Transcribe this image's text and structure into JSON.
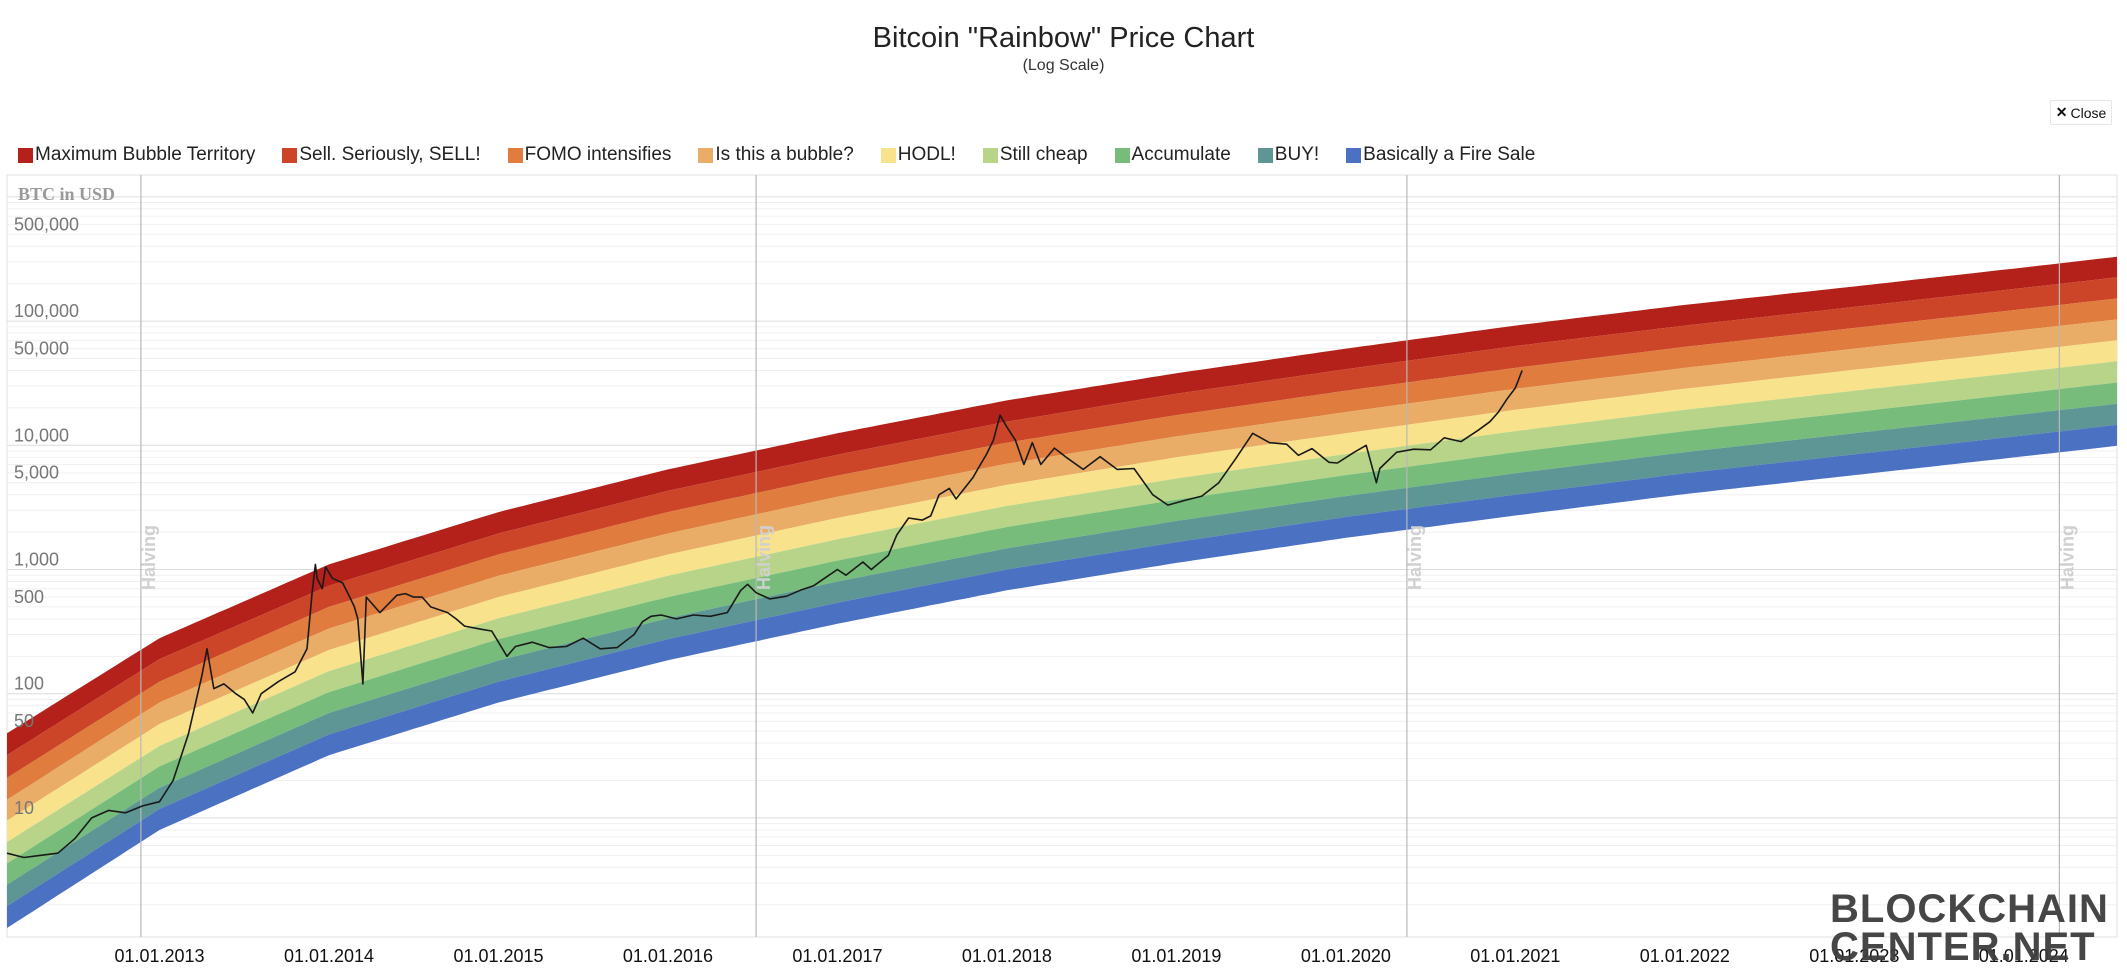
{
  "header": {
    "title": "Bitcoin \"Rainbow\" Price Chart",
    "subtitle": "(Log Scale)",
    "close_label": "Close"
  },
  "watermark": {
    "line1": "BLOCKCHAIN",
    "line2": "CENTER.NET"
  },
  "chart_data": {
    "type": "area",
    "title": "Bitcoin \"Rainbow\" Price Chart",
    "subtitle": "(Log Scale)",
    "ylabel": "BTC in USD",
    "yscale": "log",
    "ylim": [
      1.1,
      1500000
    ],
    "yticks": [
      {
        "value": 500000,
        "label": "500,000"
      },
      {
        "value": 100000,
        "label": "100,000"
      },
      {
        "value": 50000,
        "label": "50,000"
      },
      {
        "value": 10000,
        "label": "10,000"
      },
      {
        "value": 5000,
        "label": "5,000"
      },
      {
        "value": 1000,
        "label": "1,000"
      },
      {
        "value": 500,
        "label": "500"
      },
      {
        "value": 100,
        "label": "100"
      },
      {
        "value": 50,
        "label": "50"
      },
      {
        "value": 10,
        "label": "10"
      }
    ],
    "xlim": [
      2012.1,
      2024.55
    ],
    "xticks": [
      {
        "value": 2013,
        "label": "01.01.2013"
      },
      {
        "value": 2014,
        "label": "01.01.2014"
      },
      {
        "value": 2015,
        "label": "01.01.2015"
      },
      {
        "value": 2016,
        "label": "01.01.2016"
      },
      {
        "value": 2017,
        "label": "01.01.2017"
      },
      {
        "value": 2018,
        "label": "01.01.2018"
      },
      {
        "value": 2019,
        "label": "01.01.2019"
      },
      {
        "value": 2020,
        "label": "01.01.2020"
      },
      {
        "value": 2021,
        "label": "01.01.2021"
      },
      {
        "value": 2022,
        "label": "01.01.2022"
      },
      {
        "value": 2023,
        "label": "01.01.2023"
      },
      {
        "value": 2024,
        "label": "01.01.2024"
      }
    ],
    "halvings": [
      {
        "x": 2012.89,
        "label": "Halving"
      },
      {
        "x": 2016.52,
        "label": "Halving"
      },
      {
        "x": 2020.36,
        "label": "Halving"
      },
      {
        "x": 2024.21,
        "label": "Halving"
      }
    ],
    "bands": [
      {
        "name": "Maximum Bubble Territory",
        "color": "#b4201a",
        "upper": [
          [
            2012.1,
            48
          ],
          [
            2013,
            280
          ],
          [
            2014,
            1100
          ],
          [
            2015,
            2900
          ],
          [
            2016,
            6400
          ],
          [
            2017,
            12500
          ],
          [
            2018,
            23000
          ],
          [
            2019,
            38000
          ],
          [
            2020,
            60000
          ],
          [
            2021,
            92000
          ],
          [
            2022,
            135000
          ],
          [
            2023,
            190000
          ],
          [
            2024,
            270000
          ],
          [
            2024.55,
            330000
          ]
        ]
      },
      {
        "name": "Sell. Seriously, SELL!",
        "color": "#cc4529",
        "upper": [
          [
            2012.1,
            32
          ],
          [
            2013,
            190
          ],
          [
            2014,
            740
          ],
          [
            2015,
            1950
          ],
          [
            2016,
            4300
          ],
          [
            2017,
            8400
          ],
          [
            2018,
            15500
          ],
          [
            2019,
            26000
          ],
          [
            2020,
            41000
          ],
          [
            2021,
            63000
          ],
          [
            2022,
            92000
          ],
          [
            2023,
            130000
          ],
          [
            2024,
            185000
          ],
          [
            2024.55,
            225000
          ]
        ]
      },
      {
        "name": "FOMO intensifies",
        "color": "#e07c3e",
        "upper": [
          [
            2012.1,
            21
          ],
          [
            2013,
            125
          ],
          [
            2014,
            500
          ],
          [
            2015,
            1320
          ],
          [
            2016,
            2900
          ],
          [
            2017,
            5700
          ],
          [
            2018,
            10500
          ],
          [
            2019,
            17500
          ],
          [
            2020,
            27500
          ],
          [
            2021,
            42000
          ],
          [
            2022,
            62000
          ],
          [
            2023,
            88000
          ],
          [
            2024,
            125000
          ],
          [
            2024.55,
            152000
          ]
        ]
      },
      {
        "name": "Is this a bubble?",
        "color": "#eaad68",
        "upper": [
          [
            2012.1,
            14
          ],
          [
            2013,
            85
          ],
          [
            2014,
            335
          ],
          [
            2015,
            890
          ],
          [
            2016,
            1950
          ],
          [
            2017,
            3850
          ],
          [
            2018,
            7100
          ],
          [
            2019,
            11800
          ],
          [
            2020,
            18500
          ],
          [
            2021,
            28500
          ],
          [
            2022,
            42000
          ],
          [
            2023,
            60000
          ],
          [
            2024,
            85000
          ],
          [
            2024.55,
            103000
          ]
        ]
      },
      {
        "name": "HODL!",
        "color": "#f8e38c",
        "upper": [
          [
            2012.1,
            9.5
          ],
          [
            2013,
            57
          ],
          [
            2014,
            225
          ],
          [
            2015,
            600
          ],
          [
            2016,
            1320
          ],
          [
            2017,
            2600
          ],
          [
            2018,
            4800
          ],
          [
            2019,
            8000
          ],
          [
            2020,
            12500
          ],
          [
            2021,
            19300
          ],
          [
            2022,
            28500
          ],
          [
            2023,
            40500
          ],
          [
            2024,
            57500
          ],
          [
            2024.55,
            70000
          ]
        ]
      },
      {
        "name": "Still cheap",
        "color": "#b7d488",
        "upper": [
          [
            2012.1,
            6.4
          ],
          [
            2013,
            38
          ],
          [
            2014,
            152
          ],
          [
            2015,
            405
          ],
          [
            2016,
            890
          ],
          [
            2017,
            1750
          ],
          [
            2018,
            3250
          ],
          [
            2019,
            5400
          ],
          [
            2020,
            8500
          ],
          [
            2021,
            13000
          ],
          [
            2022,
            19300
          ],
          [
            2023,
            27500
          ],
          [
            2024,
            39000
          ],
          [
            2024.55,
            47500
          ]
        ]
      },
      {
        "name": "Accumulate",
        "color": "#77bc7b",
        "upper": [
          [
            2012.1,
            4.3
          ],
          [
            2013,
            26
          ],
          [
            2014,
            103
          ],
          [
            2015,
            275
          ],
          [
            2016,
            600
          ],
          [
            2017,
            1180
          ],
          [
            2018,
            2200
          ],
          [
            2019,
            3650
          ],
          [
            2020,
            5750
          ],
          [
            2021,
            8800
          ],
          [
            2022,
            13000
          ],
          [
            2023,
            18500
          ],
          [
            2024,
            26300
          ],
          [
            2024.55,
            32000
          ]
        ]
      },
      {
        "name": "BUY!",
        "color": "#5d9694",
        "upper": [
          [
            2012.1,
            2.9
          ],
          [
            2013,
            17.5
          ],
          [
            2014,
            70
          ],
          [
            2015,
            185
          ],
          [
            2016,
            405
          ],
          [
            2017,
            800
          ],
          [
            2018,
            1480
          ],
          [
            2019,
            2460
          ],
          [
            2020,
            3900
          ],
          [
            2021,
            5950
          ],
          [
            2022,
            8800
          ],
          [
            2023,
            12500
          ],
          [
            2024,
            17800
          ],
          [
            2024.55,
            21600
          ]
        ]
      },
      {
        "name": "Basically a Fire Sale",
        "color": "#4a71c2",
        "upper": [
          [
            2012.1,
            1.95
          ],
          [
            2013,
            11.8
          ],
          [
            2014,
            47
          ],
          [
            2015,
            125
          ],
          [
            2016,
            275
          ],
          [
            2017,
            540
          ],
          [
            2018,
            1000
          ],
          [
            2019,
            1660
          ],
          [
            2020,
            2650
          ],
          [
            2021,
            4000
          ],
          [
            2022,
            5950
          ],
          [
            2023,
            8450
          ],
          [
            2024,
            12000
          ],
          [
            2024.55,
            14600
          ]
        ],
        "lower": [
          [
            2012.1,
            1.3
          ],
          [
            2013,
            8
          ],
          [
            2014,
            32
          ],
          [
            2015,
            85
          ],
          [
            2016,
            186
          ],
          [
            2017,
            366
          ],
          [
            2018,
            680
          ],
          [
            2019,
            1130
          ],
          [
            2020,
            1800
          ],
          [
            2021,
            2720
          ],
          [
            2022,
            4050
          ],
          [
            2023,
            5750
          ],
          [
            2024,
            8150
          ],
          [
            2024.55,
            9900
          ]
        ]
      }
    ],
    "series": [
      {
        "name": "BTC price (USD)",
        "color": "#1a1a1a",
        "points": [
          [
            2012.1,
            5.2
          ],
          [
            2012.2,
            4.8
          ],
          [
            2012.3,
            5.0
          ],
          [
            2012.4,
            5.2
          ],
          [
            2012.5,
            6.8
          ],
          [
            2012.6,
            10
          ],
          [
            2012.7,
            11.5
          ],
          [
            2012.8,
            11
          ],
          [
            2012.9,
            12.5
          ],
          [
            2013.0,
            13.5
          ],
          [
            2013.08,
            20
          ],
          [
            2013.17,
            47
          ],
          [
            2013.25,
            140
          ],
          [
            2013.28,
            230
          ],
          [
            2013.32,
            110
          ],
          [
            2013.38,
            120
          ],
          [
            2013.45,
            100
          ],
          [
            2013.5,
            90
          ],
          [
            2013.55,
            70
          ],
          [
            2013.6,
            100
          ],
          [
            2013.7,
            125
          ],
          [
            2013.8,
            150
          ],
          [
            2013.87,
            230
          ],
          [
            2013.9,
            650
          ],
          [
            2013.92,
            1100
          ],
          [
            2013.93,
            850
          ],
          [
            2013.96,
            700
          ],
          [
            2013.98,
            1050
          ],
          [
            2014.02,
            850
          ],
          [
            2014.08,
            780
          ],
          [
            2014.12,
            610
          ],
          [
            2014.15,
            500
          ],
          [
            2014.17,
            400
          ],
          [
            2014.2,
            120
          ],
          [
            2014.22,
            600
          ],
          [
            2014.3,
            450
          ],
          [
            2014.4,
            620
          ],
          [
            2014.45,
            640
          ],
          [
            2014.5,
            600
          ],
          [
            2014.55,
            600
          ],
          [
            2014.6,
            500
          ],
          [
            2014.7,
            450
          ],
          [
            2014.75,
            400
          ],
          [
            2014.8,
            350
          ],
          [
            2014.9,
            330
          ],
          [
            2014.96,
            320
          ],
          [
            2015.05,
            200
          ],
          [
            2015.1,
            240
          ],
          [
            2015.2,
            260
          ],
          [
            2015.3,
            235
          ],
          [
            2015.4,
            240
          ],
          [
            2015.5,
            280
          ],
          [
            2015.6,
            230
          ],
          [
            2015.7,
            235
          ],
          [
            2015.8,
            300
          ],
          [
            2015.85,
            380
          ],
          [
            2015.9,
            420
          ],
          [
            2015.96,
            430
          ],
          [
            2016.05,
            400
          ],
          [
            2016.15,
            430
          ],
          [
            2016.25,
            420
          ],
          [
            2016.35,
            450
          ],
          [
            2016.43,
            680
          ],
          [
            2016.47,
            760
          ],
          [
            2016.52,
            650
          ],
          [
            2016.6,
            580
          ],
          [
            2016.7,
            610
          ],
          [
            2016.78,
            680
          ],
          [
            2016.86,
            740
          ],
          [
            2016.95,
            900
          ],
          [
            2017.0,
            1000
          ],
          [
            2017.05,
            900
          ],
          [
            2017.15,
            1150
          ],
          [
            2017.2,
            1000
          ],
          [
            2017.3,
            1300
          ],
          [
            2017.35,
            1900
          ],
          [
            2017.42,
            2600
          ],
          [
            2017.5,
            2500
          ],
          [
            2017.55,
            2700
          ],
          [
            2017.6,
            4000
          ],
          [
            2017.66,
            4500
          ],
          [
            2017.7,
            3700
          ],
          [
            2017.8,
            5500
          ],
          [
            2017.83,
            6500
          ],
          [
            2017.88,
            8500
          ],
          [
            2017.92,
            11000
          ],
          [
            2017.96,
            17500
          ],
          [
            2018.0,
            14000
          ],
          [
            2018.05,
            11000
          ],
          [
            2018.1,
            7000
          ],
          [
            2018.15,
            10500
          ],
          [
            2018.2,
            7000
          ],
          [
            2018.28,
            9500
          ],
          [
            2018.35,
            8000
          ],
          [
            2018.45,
            6400
          ],
          [
            2018.55,
            8100
          ],
          [
            2018.65,
            6400
          ],
          [
            2018.75,
            6500
          ],
          [
            2018.86,
            4000
          ],
          [
            2018.95,
            3300
          ],
          [
            2019.05,
            3600
          ],
          [
            2019.15,
            3900
          ],
          [
            2019.25,
            5000
          ],
          [
            2019.35,
            7800
          ],
          [
            2019.45,
            12500
          ],
          [
            2019.55,
            10500
          ],
          [
            2019.65,
            10200
          ],
          [
            2019.72,
            8300
          ],
          [
            2019.8,
            9400
          ],
          [
            2019.9,
            7300
          ],
          [
            2019.95,
            7200
          ],
          [
            2020.05,
            8800
          ],
          [
            2020.12,
            10000
          ],
          [
            2020.18,
            5000
          ],
          [
            2020.2,
            6500
          ],
          [
            2020.3,
            8800
          ],
          [
            2020.4,
            9300
          ],
          [
            2020.5,
            9200
          ],
          [
            2020.58,
            11500
          ],
          [
            2020.68,
            10700
          ],
          [
            2020.78,
            13200
          ],
          [
            2020.85,
            15500
          ],
          [
            2020.9,
            18500
          ],
          [
            2020.95,
            23500
          ],
          [
            2021.0,
            29000
          ],
          [
            2021.04,
            40000
          ]
        ]
      }
    ]
  }
}
